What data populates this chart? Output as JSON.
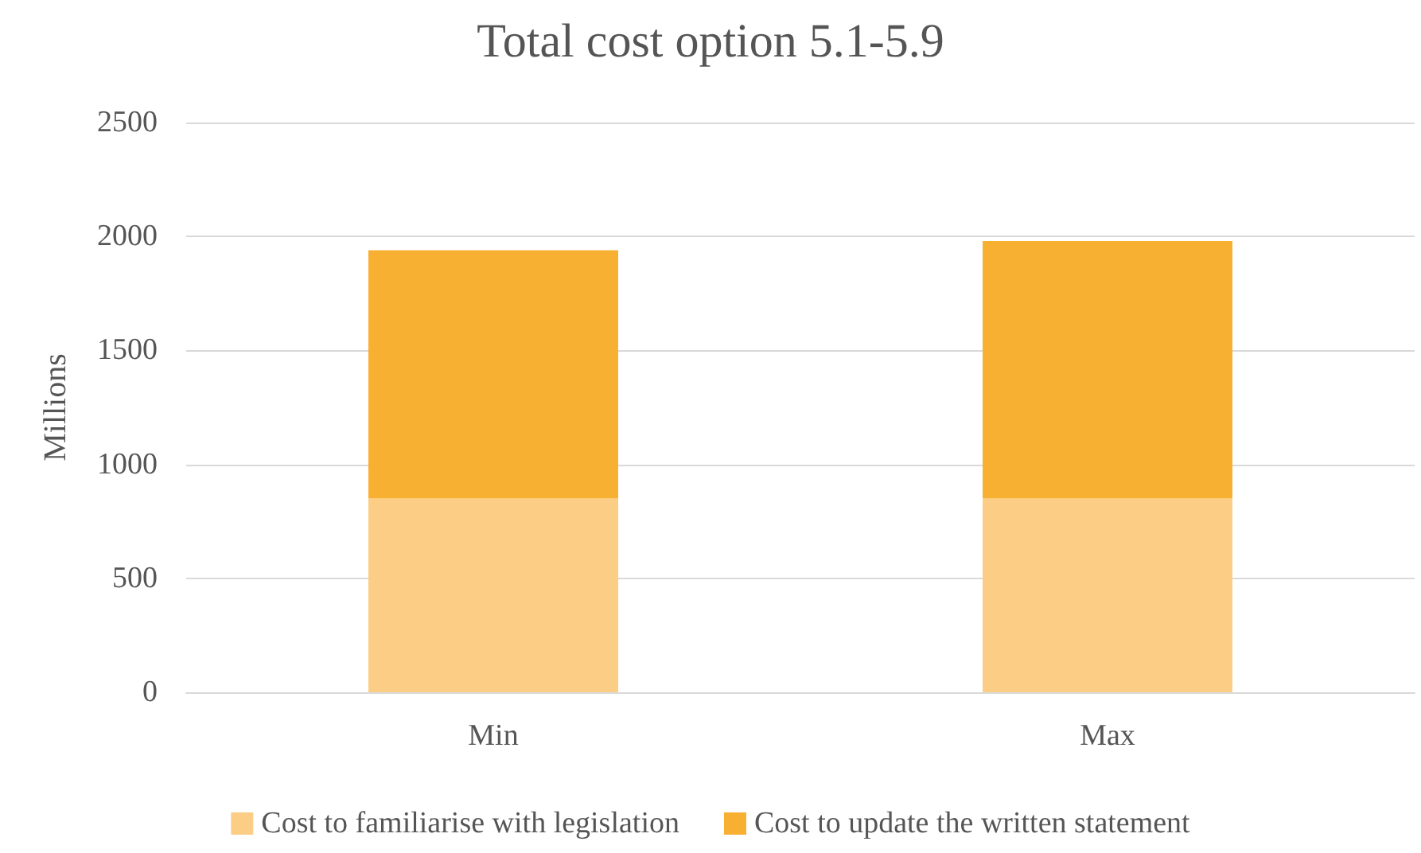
{
  "chart_data": {
    "type": "bar",
    "title": "Total cost option 5.1-5.9",
    "ylabel": "Millions",
    "categories": [
      "Min",
      "Max"
    ],
    "stacked": true,
    "series": [
      {
        "name": "Cost to familiarise with legislation",
        "color": "#fccd85",
        "values": [
          850,
          850
        ]
      },
      {
        "name": "Cost to update the written statement",
        "color": "#f8b032",
        "values": [
          1090,
          1130
        ]
      }
    ],
    "ylim": [
      0,
      2500
    ],
    "yticks": [
      0,
      500,
      1000,
      1500,
      2000,
      2500
    ],
    "grid": "y",
    "legend": "bottom"
  }
}
